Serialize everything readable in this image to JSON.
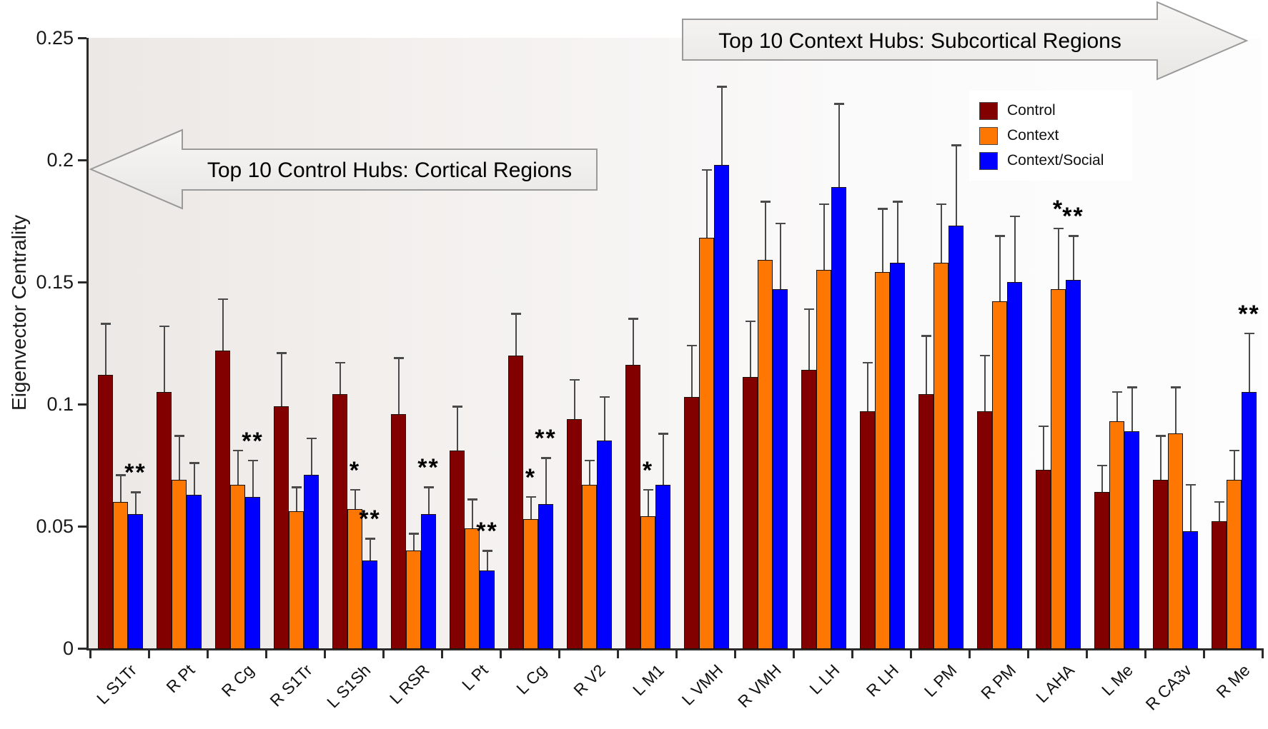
{
  "figure": {
    "ylabel": "Eigenvector Centrality",
    "annotations": {
      "left": {
        "text": "Top 10 Control Hubs: Cortical Regions",
        "direction": "left"
      },
      "right": {
        "text": "Top 10 Context Hubs: Subcortical Regions",
        "direction": "right"
      }
    },
    "legend_title": ""
  },
  "chart_data": {
    "type": "bar",
    "title": "",
    "xlabel": "",
    "ylabel": "Eigenvector Centrality",
    "ylim": [
      0,
      0.25
    ],
    "yticks": [
      0,
      0.05,
      0.1,
      0.15,
      0.2,
      0.25
    ],
    "ytick_labels": [
      "0",
      "0.05",
      "0.1",
      "0.15",
      "0.2",
      "0.25"
    ],
    "grid": false,
    "error_bars": "upper",
    "legend_position": "upper right",
    "categories": [
      "L S1Tr",
      "R Pt",
      "R Cg",
      "R S1Tr",
      "L S1Sh",
      "L RSR",
      "L Pt",
      "L Cg",
      "R V2",
      "L M1",
      "L VMH",
      "R VMH",
      "L LH",
      "R LH",
      "L PM",
      "R PM",
      "L AHA",
      "L Me",
      "R CA3v",
      "R Me"
    ],
    "series": [
      {
        "name": "Control",
        "color": "#820000",
        "values": [
          0.112,
          0.105,
          0.122,
          0.099,
          0.104,
          0.096,
          0.081,
          0.12,
          0.094,
          0.116,
          0.103,
          0.111,
          0.114,
          0.097,
          0.104,
          0.097,
          0.073,
          0.064,
          0.069,
          0.052
        ],
        "errors": [
          0.021,
          0.027,
          0.021,
          0.022,
          0.013,
          0.023,
          0.018,
          0.017,
          0.016,
          0.019,
          0.021,
          0.023,
          0.025,
          0.02,
          0.024,
          0.023,
          0.018,
          0.011,
          0.018,
          0.008
        ],
        "sig": [
          "",
          "",
          "",
          "",
          "",
          "",
          "",
          "",
          "",
          "",
          "",
          "",
          "",
          "",
          "",
          "",
          "",
          "",
          "",
          ""
        ]
      },
      {
        "name": "Context",
        "color": "#ff7703",
        "values": [
          0.06,
          0.069,
          0.067,
          0.056,
          0.057,
          0.04,
          0.049,
          0.053,
          0.067,
          0.054,
          0.168,
          0.159,
          0.155,
          0.154,
          0.158,
          0.142,
          0.147,
          0.093,
          0.088,
          0.069
        ],
        "errors": [
          0.011,
          0.018,
          0.014,
          0.01,
          0.008,
          0.007,
          0.012,
          0.009,
          0.01,
          0.011,
          0.028,
          0.024,
          0.027,
          0.026,
          0.024,
          0.027,
          0.025,
          0.012,
          0.019,
          0.012
        ],
        "sig": [
          "",
          "",
          "",
          "",
          "*",
          "",
          "",
          "*",
          "",
          "*",
          "",
          "",
          "",
          "",
          "",
          "",
          "*",
          "",
          "",
          ""
        ]
      },
      {
        "name": "Context/Social",
        "color": "#0000ff",
        "values": [
          0.055,
          0.063,
          0.062,
          0.071,
          0.036,
          0.055,
          0.032,
          0.059,
          0.085,
          0.067,
          0.198,
          0.147,
          0.189,
          0.158,
          0.173,
          0.15,
          0.151,
          0.089,
          0.048,
          0.105
        ],
        "errors": [
          0.009,
          0.013,
          0.015,
          0.015,
          0.009,
          0.011,
          0.008,
          0.019,
          0.018,
          0.021,
          0.032,
          0.027,
          0.034,
          0.025,
          0.033,
          0.027,
          0.018,
          0.018,
          0.019,
          0.024
        ],
        "sig": [
          "**",
          "",
          "**",
          "",
          "**",
          "**",
          "**",
          "**",
          "",
          "",
          "",
          "",
          "",
          "",
          "",
          "",
          "**",
          "",
          "",
          "**"
        ]
      }
    ],
    "style": {
      "arrow_fill_top": "#f7f6f5",
      "arrow_fill_bottom": "#e9e7e4",
      "arrow_border": "#9a9a9a"
    }
  }
}
